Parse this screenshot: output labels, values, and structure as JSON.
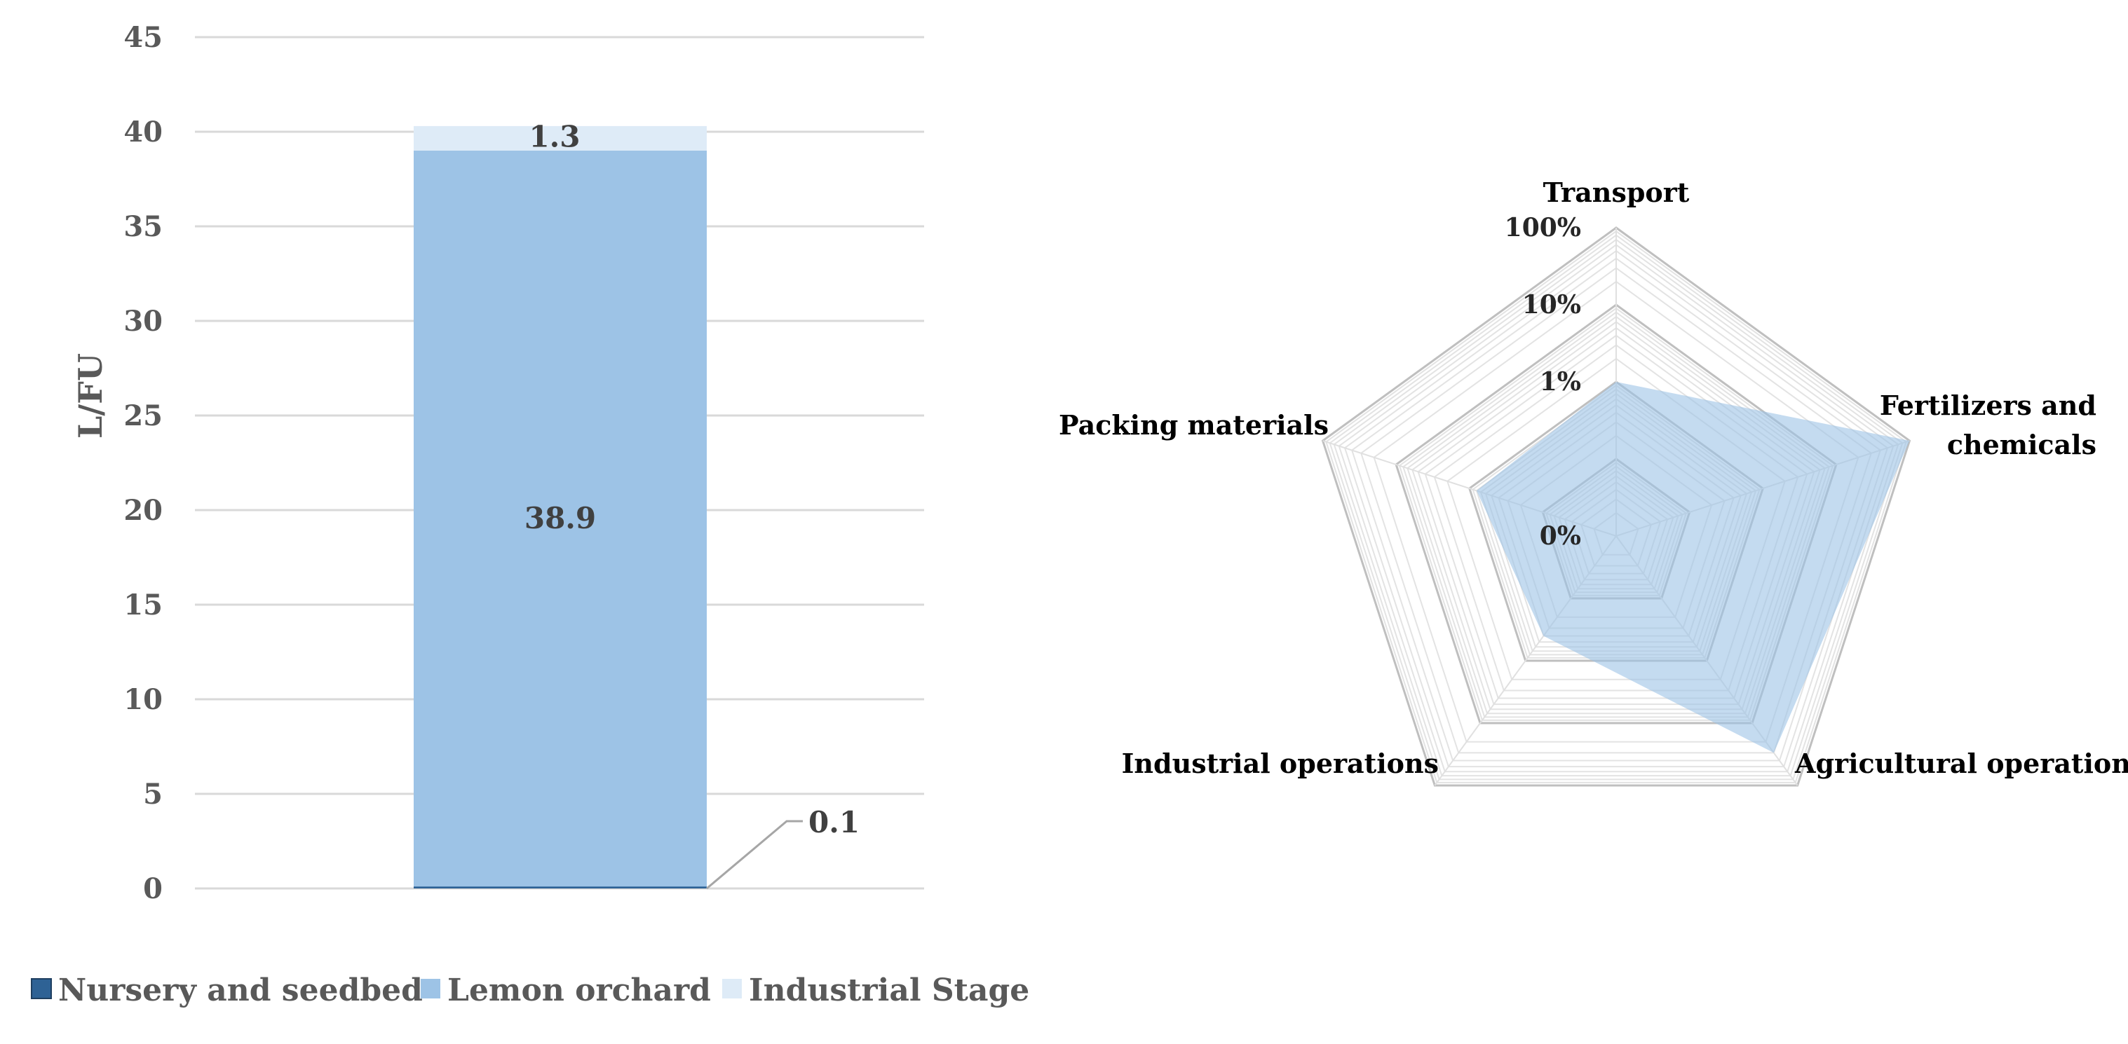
{
  "chart_data": [
    {
      "type": "bar",
      "stacked": true,
      "categories": [
        ""
      ],
      "ylabel": "L/FU",
      "ylim": [
        0,
        45
      ],
      "yticks": [
        "0",
        "5",
        "10",
        "15",
        "20",
        "25",
        "30",
        "35",
        "40",
        "45"
      ],
      "grid": true,
      "legend_position": "bottom",
      "series": [
        {
          "name": "Nursery and seedbed",
          "values": [
            0.1
          ],
          "label": "0.1",
          "color": "#2e6295"
        },
        {
          "name": "Lemon orchard",
          "values": [
            38.9
          ],
          "label": "38.9",
          "color": "#9dc3e6"
        },
        {
          "name": "Industrial Stage",
          "values": [
            1.3
          ],
          "label": "1.3",
          "color": "#deebf7"
        }
      ]
    },
    {
      "type": "radar",
      "axes": [
        "Transport",
        "Fertilizers and chemicals",
        "Agricultural operations",
        "Industrial operations",
        "Packing materials"
      ],
      "scale": "log",
      "rtick_labels": [
        "0%",
        "1%",
        "10%",
        "100%"
      ],
      "values_percent": [
        1,
        100,
        30,
        0.4,
        0.8
      ],
      "fill_color": "#9dc3e6",
      "grid": true
    }
  ]
}
